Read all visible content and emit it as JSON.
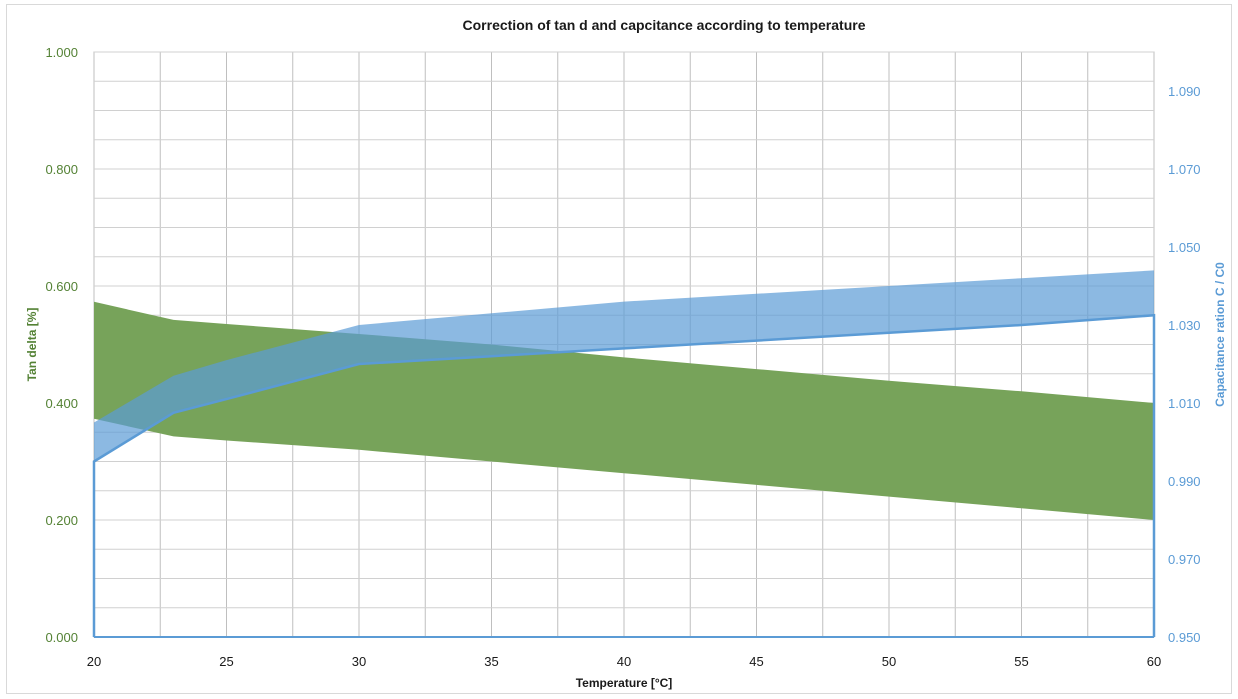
{
  "chart_data": {
    "type": "area",
    "title": "Correction of tan d and capcitance according to temperature",
    "xlabel": "Temperature [°C]",
    "ylabel": "Tan delta [%]",
    "y2label": "Capacitance ration C / C0",
    "xlim": [
      20,
      60
    ],
    "ylim": [
      0,
      1
    ],
    "y2lim": [
      0.95,
      1.1
    ],
    "x_ticks": [
      "20",
      "25",
      "30",
      "35",
      "40",
      "45",
      "50",
      "55",
      "60"
    ],
    "y_ticks": [
      "0.000",
      "0.200",
      "0.400",
      "0.600",
      "0.800",
      "1.000"
    ],
    "y2_ticks": [
      "0.950",
      "0.970",
      "0.990",
      "1.010",
      "1.030",
      "1.050",
      "1.070",
      "1.090"
    ],
    "grid": true,
    "colors": {
      "tan_fill": "#77a35a",
      "cap_fill": "#5b9bd5",
      "cap_line": "#5b9bd5",
      "left_axis_text": "#548235",
      "right_axis_text": "#5b9bd5"
    },
    "series": [
      {
        "axis": "left",
        "x": [
          20,
          23,
          25,
          30,
          35,
          40,
          45,
          50,
          55,
          60
        ],
        "upper": [
          0.573,
          0.542,
          0.535,
          0.518,
          0.5,
          0.478,
          0.458,
          0.438,
          0.42,
          0.4
        ],
        "lower": [
          0.373,
          0.343,
          0.336,
          0.32,
          0.3,
          0.28,
          0.26,
          0.24,
          0.22,
          0.2
        ]
      },
      {
        "axis": "right",
        "x": [
          20,
          23,
          25,
          30,
          35,
          40,
          45,
          50,
          55,
          60
        ],
        "upper": [
          1.005,
          1.017,
          1.021,
          1.03,
          1.033,
          1.036,
          1.038,
          1.04,
          1.042,
          1.044
        ],
        "lower": [
          0.995,
          1.0075,
          1.011,
          1.02,
          1.022,
          1.024,
          1.026,
          1.028,
          1.03,
          1.0325
        ]
      }
    ]
  }
}
